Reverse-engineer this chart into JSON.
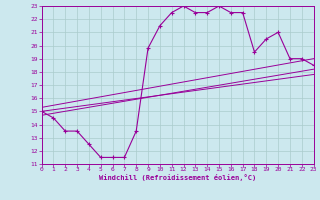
{
  "xlabel": "Windchill (Refroidissement éolien,°C)",
  "xlim": [
    0,
    23
  ],
  "ylim": [
    11,
    23
  ],
  "xticks": [
    0,
    1,
    2,
    3,
    4,
    5,
    6,
    7,
    8,
    9,
    10,
    11,
    12,
    13,
    14,
    15,
    16,
    17,
    18,
    19,
    20,
    21,
    22,
    23
  ],
  "yticks": [
    11,
    12,
    13,
    14,
    15,
    16,
    17,
    18,
    19,
    20,
    21,
    22,
    23
  ],
  "bg_color": "#cce8ee",
  "line_color": "#990099",
  "grid_color": "#aacccc",
  "main_curve": {
    "x": [
      0,
      1,
      2,
      3,
      4,
      5,
      6,
      7,
      8,
      9,
      10,
      11,
      12,
      13,
      14,
      15,
      16,
      17,
      18,
      19,
      20,
      21,
      22,
      23
    ],
    "y": [
      15.0,
      14.5,
      13.5,
      13.5,
      12.5,
      11.5,
      11.5,
      11.5,
      13.5,
      19.8,
      21.5,
      22.5,
      23.0,
      22.5,
      22.5,
      23.0,
      22.5,
      22.5,
      19.5,
      20.5,
      21.0,
      19.0,
      19.0,
      18.5
    ]
  },
  "diag_lines": [
    [
      0,
      23,
      15.0,
      17.8
    ],
    [
      0,
      23,
      14.7,
      18.2
    ],
    [
      0,
      23,
      15.3,
      19.0
    ]
  ]
}
